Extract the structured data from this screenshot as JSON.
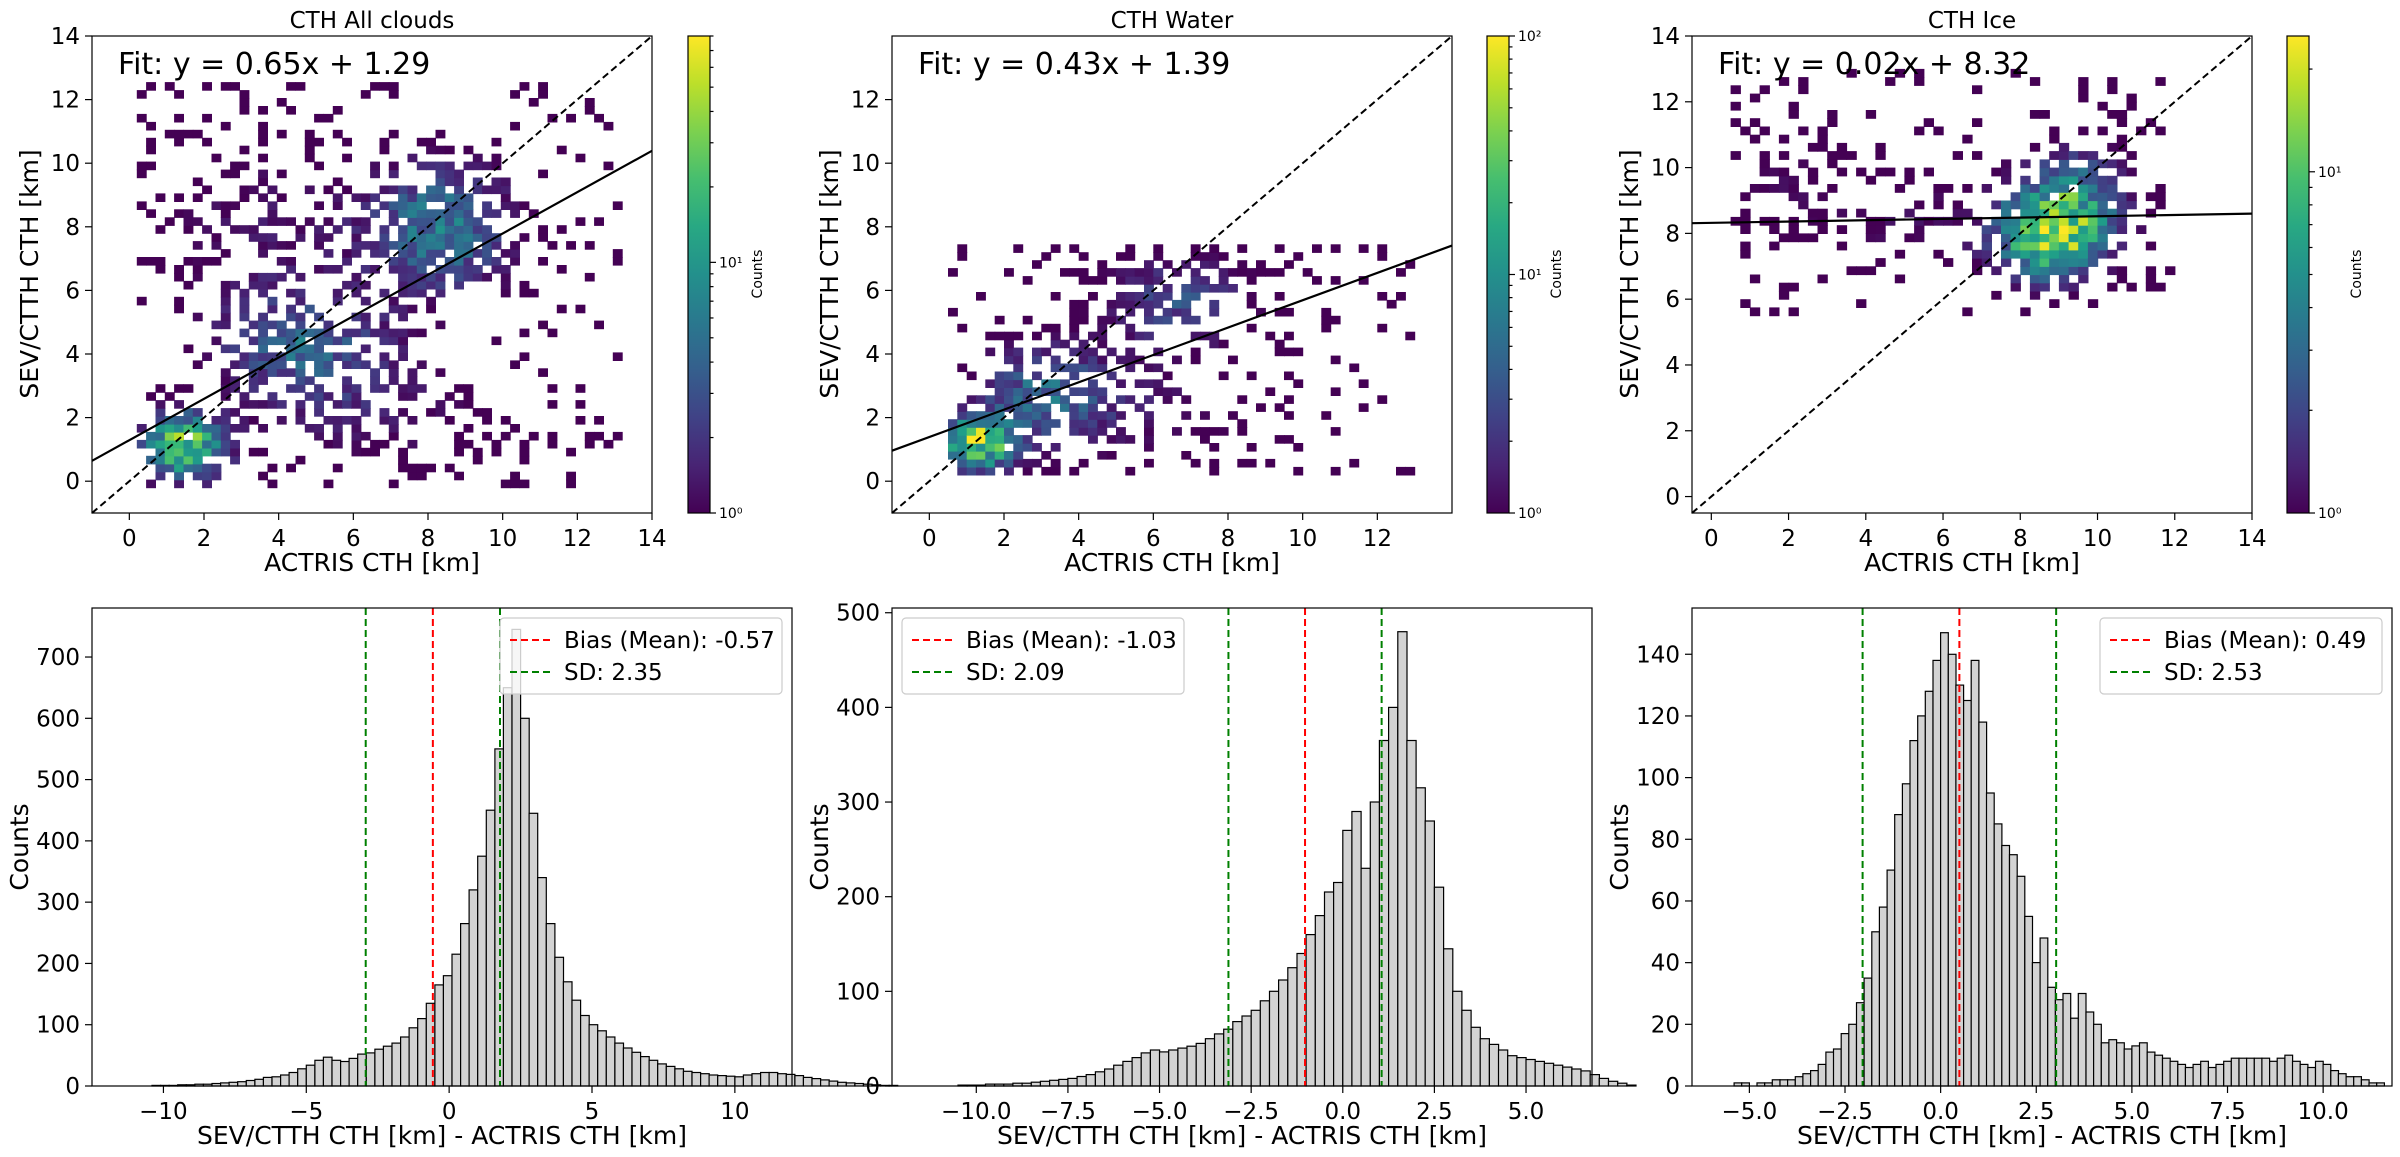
{
  "scatter_axes": {
    "xlabel": "ACTRIS CTH [km]",
    "ylabel": "SEV/CTTH CTH [km]",
    "colorbar_label": "Counts",
    "colormap": [
      "#440154",
      "#482878",
      "#3e4989",
      "#31688e",
      "#26828e",
      "#1f9e89",
      "#35b779",
      "#6ece58",
      "#b5de2b",
      "#fde725"
    ]
  },
  "hist_axes": {
    "xlabel": "SEV/CTTH CTH [km] - ACTRIS CTH [km]",
    "ylabel": "Counts",
    "bar_color": "#d3d3d3",
    "bias_color": "#ff0000",
    "sd_color": "#008000"
  },
  "chart_data": [
    {
      "type": "heatmap",
      "title": "CTH All clouds",
      "xlabel": "ACTRIS CTH [km]",
      "ylabel": "SEV/CTTH CTH [km]",
      "xlim": [
        -1,
        14
      ],
      "ylim": [
        -1,
        14
      ],
      "xticks": [
        0,
        2,
        4,
        6,
        8,
        10,
        12,
        14
      ],
      "yticks": [
        0,
        2,
        4,
        6,
        8,
        10,
        12,
        14
      ],
      "fit_label": "Fit: y = 0.65x + 1.29",
      "fit": {
        "slope": 0.65,
        "intercept": 1.29
      },
      "one_to_one_line": true,
      "colorbar": {
        "scale": "log",
        "min": 1,
        "max": 80,
        "tick_labels": [
          "10⁰",
          "10¹"
        ],
        "tick_values": [
          1,
          10
        ]
      },
      "density_clusters": [
        {
          "x": 1.3,
          "y": 1.0,
          "spread_x": 0.8,
          "spread_y": 0.7,
          "weight": 1.0
        },
        {
          "x": 4.5,
          "y": 4.2,
          "spread_x": 1.6,
          "spread_y": 1.2,
          "weight": 0.45
        },
        {
          "x": 8.2,
          "y": 7.8,
          "spread_x": 1.3,
          "spread_y": 1.4,
          "weight": 0.55
        },
        {
          "x": 3.5,
          "y": 8.0,
          "spread_x": 2.0,
          "spread_y": 1.8,
          "weight": 0.15
        },
        {
          "x": 6.5,
          "y": 2.0,
          "spread_x": 2.2,
          "spread_y": 1.2,
          "weight": 0.15
        }
      ],
      "data_extent": {
        "x": [
          0.2,
          13.2
        ],
        "y": [
          -0.2,
          12.5
        ]
      }
    },
    {
      "type": "heatmap",
      "title": "CTH Water",
      "xlabel": "ACTRIS CTH [km]",
      "ylabel": "SEV/CTTH CTH [km]",
      "xlim": [
        -1,
        14
      ],
      "ylim": [
        -1,
        14
      ],
      "xticks": [
        0,
        2,
        4,
        6,
        8,
        10,
        12
      ],
      "yticks": [
        0,
        2,
        4,
        6,
        8,
        10,
        12
      ],
      "fit_label": "Fit: y = 0.43x + 1.39",
      "fit": {
        "slope": 0.43,
        "intercept": 1.39
      },
      "one_to_one_line": true,
      "colorbar": {
        "scale": "log",
        "min": 1,
        "max": 100,
        "tick_labels": [
          "10⁰",
          "10¹",
          "10²"
        ],
        "tick_values": [
          1,
          10,
          100
        ]
      },
      "density_clusters": [
        {
          "x": 1.2,
          "y": 1.1,
          "spread_x": 0.7,
          "spread_y": 0.6,
          "weight": 1.0
        },
        {
          "x": 3.0,
          "y": 2.8,
          "spread_x": 1.2,
          "spread_y": 1.0,
          "weight": 0.4
        },
        {
          "x": 6.5,
          "y": 5.5,
          "spread_x": 1.4,
          "spread_y": 1.0,
          "weight": 0.35
        },
        {
          "x": 5.0,
          "y": 2.0,
          "spread_x": 2.5,
          "spread_y": 1.2,
          "weight": 0.15
        }
      ],
      "data_extent": {
        "x": [
          0.5,
          13.0
        ],
        "y": [
          0.2,
          7.3
        ]
      }
    },
    {
      "type": "heatmap",
      "title": "CTH Ice",
      "xlabel": "ACTRIS CTH [km]",
      "ylabel": "SEV/CTTH CTH [km]",
      "xlim": [
        -0.5,
        14
      ],
      "ylim": [
        -0.5,
        14
      ],
      "xticks": [
        0,
        2,
        4,
        6,
        8,
        10,
        12,
        14
      ],
      "yticks": [
        0,
        2,
        4,
        6,
        8,
        10,
        12,
        14
      ],
      "fit_label": "Fit: y = 0.02x + 8.32",
      "fit": {
        "slope": 0.02,
        "intercept": 8.32
      },
      "one_to_one_line": true,
      "colorbar": {
        "scale": "log",
        "min": 1,
        "max": 25,
        "tick_labels": [
          "10⁰",
          "10¹"
        ],
        "tick_values": [
          1,
          10
        ]
      },
      "density_clusters": [
        {
          "x": 8.6,
          "y": 7.8,
          "spread_x": 0.9,
          "spread_y": 0.9,
          "weight": 1.0
        },
        {
          "x": 9.3,
          "y": 9.0,
          "spread_x": 1.0,
          "spread_y": 1.0,
          "weight": 0.5
        },
        {
          "x": 2.0,
          "y": 9.0,
          "spread_x": 1.4,
          "spread_y": 1.2,
          "weight": 0.12
        },
        {
          "x": 5.5,
          "y": 8.2,
          "spread_x": 1.5,
          "spread_y": 1.0,
          "weight": 0.12
        }
      ],
      "data_extent": {
        "x": [
          0.5,
          11.8
        ],
        "y": [
          5.5,
          12.8
        ]
      }
    },
    {
      "type": "bar",
      "subtype": "histogram",
      "xlabel": "SEV/CTTH CTH [km] - ACTRIS CTH [km]",
      "ylabel": "Counts",
      "xlim": [
        -12.5,
        12
      ],
      "ylim": [
        0,
        780
      ],
      "xticks": [
        -10,
        -5,
        0,
        5,
        10
      ],
      "xtick_labels": [
        "−10",
        "−5",
        "0",
        "5",
        "10"
      ],
      "yticks": [
        0,
        100,
        200,
        300,
        400,
        500,
        600,
        700
      ],
      "bin_start": -11.0,
      "bin_width": 0.3,
      "values": [
        0,
        0,
        1,
        1,
        1,
        2,
        2,
        3,
        3,
        4,
        5,
        6,
        7,
        9,
        11,
        14,
        15,
        18,
        22,
        28,
        34,
        42,
        47,
        42,
        40,
        45,
        52,
        54,
        60,
        65,
        70,
        80,
        95,
        110,
        135,
        165,
        180,
        215,
        265,
        320,
        375,
        450,
        550,
        650,
        745,
        600,
        445,
        340,
        265,
        210,
        170,
        140,
        115,
        100,
        90,
        80,
        70,
        62,
        55,
        48,
        42,
        36,
        32,
        28,
        24,
        22,
        20,
        18,
        17,
        16,
        15,
        18,
        20,
        22,
        22,
        20,
        19,
        17,
        14,
        12,
        10,
        8,
        6,
        5,
        4,
        3,
        2,
        1,
        1,
        0
      ],
      "bias": -0.57,
      "sd": 2.35,
      "sd_lines": [
        -2.92,
        1.78
      ],
      "legend": [
        "Bias (Mean): -0.57",
        "SD: 2.35"
      ],
      "legend_position": "top-right"
    },
    {
      "type": "bar",
      "subtype": "histogram",
      "xlabel": "SEV/CTTH CTH [km] - ACTRIS CTH [km]",
      "ylabel": "Counts",
      "xlim": [
        -12.3,
        6.8
      ],
      "ylim": [
        0,
        505
      ],
      "xticks": [
        -10,
        -7.5,
        -5,
        -2.5,
        0,
        2.5,
        5
      ],
      "xtick_labels": [
        "−10.0",
        "−7.5",
        "−5.0",
        "−2.5",
        "0.0",
        "2.5",
        "5.0"
      ],
      "yticks": [
        0,
        100,
        200,
        300,
        400,
        500
      ],
      "bin_start": -11.0,
      "bin_width": 0.25,
      "values": [
        0,
        0,
        1,
        1,
        1,
        2,
        2,
        2,
        3,
        3,
        4,
        5,
        6,
        7,
        8,
        10,
        12,
        15,
        18,
        22,
        26,
        30,
        35,
        38,
        36,
        38,
        40,
        42,
        45,
        50,
        55,
        60,
        68,
        74,
        80,
        90,
        100,
        112,
        125,
        140,
        160,
        180,
        205,
        215,
        270,
        290,
        230,
        300,
        365,
        400,
        480,
        365,
        315,
        280,
        210,
        145,
        100,
        80,
        62,
        50,
        44,
        38,
        32,
        30,
        28,
        26,
        24,
        22,
        20,
        18,
        16,
        12,
        8,
        5,
        3,
        1,
        0
      ],
      "bias": -1.03,
      "sd": 2.09,
      "sd_lines": [
        -3.12,
        1.06
      ],
      "legend": [
        "Bias (Mean): -1.03",
        "SD: 2.09"
      ],
      "legend_position": "top-left"
    },
    {
      "type": "bar",
      "subtype": "histogram",
      "xlabel": "SEV/CTTH CTH [km] - ACTRIS CTH [km]",
      "ylabel": "Counts",
      "xlim": [
        -6.5,
        11.8
      ],
      "ylim": [
        0,
        155
      ],
      "xticks": [
        -5,
        -2.5,
        0,
        2.5,
        5,
        7.5,
        10
      ],
      "xtick_labels": [
        "−5.0",
        "−2.5",
        "0.0",
        "2.5",
        "5.0",
        "7.5",
        "10.0"
      ],
      "yticks": [
        0,
        20,
        40,
        60,
        80,
        100,
        120,
        140
      ],
      "bin_start": -5.8,
      "bin_width": 0.2,
      "values": [
        0,
        0,
        1,
        1,
        0,
        1,
        1,
        2,
        2,
        2,
        3,
        4,
        5,
        7,
        11,
        12,
        17,
        20,
        27,
        35,
        50,
        58,
        70,
        88,
        98,
        112,
        120,
        128,
        138,
        147,
        140,
        130,
        125,
        138,
        118,
        95,
        85,
        78,
        75,
        68,
        55,
        40,
        48,
        32,
        28,
        30,
        22,
        30,
        24,
        20,
        14,
        15,
        14,
        12,
        13,
        14,
        11,
        10,
        9,
        8,
        7,
        6,
        7,
        8,
        6,
        7,
        8,
        9,
        9,
        9,
        9,
        9,
        8,
        9,
        10,
        8,
        7,
        6,
        8,
        7,
        5,
        4,
        3,
        3,
        2,
        1,
        1,
        0
      ],
      "bias": 0.49,
      "sd": 2.53,
      "sd_lines": [
        -2.04,
        3.02
      ],
      "legend": [
        "Bias (Mean): 0.49",
        "SD: 2.53"
      ],
      "legend_position": "top-right"
    }
  ]
}
